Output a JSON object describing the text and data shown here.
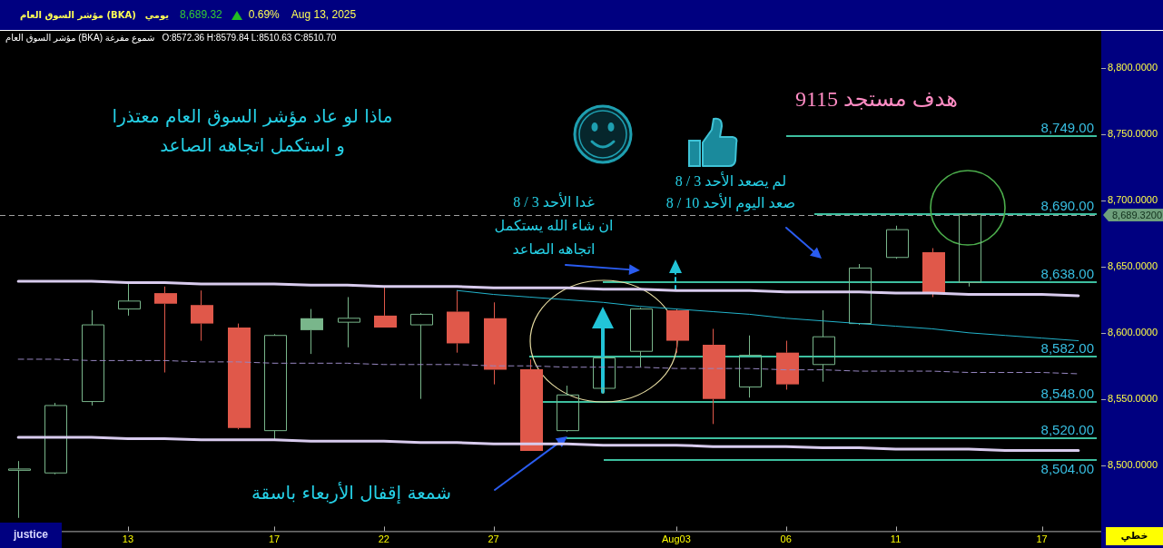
{
  "chart_data": {
    "type": "candlestick",
    "title": "مؤشر السوق العام (BKA)",
    "categories": [
      null,
      null,
      null,
      "13",
      null,
      null,
      null,
      "17",
      null,
      null,
      "22",
      null,
      null,
      "27",
      null,
      null,
      null,
      null,
      "Aug03",
      null,
      null,
      "06",
      null,
      null,
      "11",
      null,
      null,
      null,
      "17",
      null
    ],
    "ohlc": [
      [
        8496,
        8503,
        8460,
        8497
      ],
      [
        8494,
        8547,
        8493,
        8545
      ],
      [
        8548,
        8617,
        8545,
        8606
      ],
      [
        8618,
        8637,
        8613,
        8624
      ],
      [
        8630,
        8635,
        8570,
        8622
      ],
      [
        8621,
        8632,
        8594,
        8607
      ],
      [
        8604,
        8607,
        8527,
        8528
      ],
      [
        8526,
        8599,
        8519,
        8598
      ],
      [
        8611,
        8618,
        8584,
        8602
      ],
      [
        8608,
        8627,
        8589,
        8611
      ],
      [
        8613,
        8635,
        8604,
        8604
      ],
      [
        8606,
        8615,
        8550,
        8614
      ],
      [
        8616,
        8632,
        8585,
        8592
      ],
      [
        8611,
        8623,
        8561,
        8572
      ],
      [
        8572.36,
        8579.84,
        8510.63,
        8510.7
      ],
      [
        8526,
        8560,
        8525,
        8553
      ],
      [
        8558,
        8581,
        8554,
        8581
      ],
      [
        8586,
        8619,
        8574,
        8618
      ],
      [
        8617,
        8618,
        8585,
        8594
      ],
      [
        8591,
        8603,
        8531,
        8550
      ],
      [
        8559,
        8598,
        8551,
        8583
      ],
      [
        8585,
        8594,
        8557,
        8561
      ],
      [
        8576,
        8617,
        8563,
        8597
      ],
      [
        8607,
        8652,
        8606,
        8649
      ],
      [
        8657,
        8681,
        8656,
        8678
      ],
      [
        8661,
        8664,
        8627,
        8630
      ],
      [
        8638,
        8689.32,
        8635,
        8689.32
      ],
      null,
      null,
      null
    ],
    "colors": [
      "#79b68b",
      "#79b68b",
      "#79b68b",
      "#79b68b",
      "#e0584a",
      "#e0584a",
      "#e0584a",
      "#79b68b",
      "#79b68b",
      "#79b68b",
      "#e0584a",
      "#79b68b",
      "#e0584a",
      "#e0584a",
      "#e0584a",
      "#79b68b",
      "#79b68b",
      "#79b68b",
      "#e0584a",
      "#e0584a",
      "#79b68b",
      "#e0584a",
      "#79b68b",
      "#79b68b",
      "#79b68b",
      "#e0584a",
      "#79b68b",
      null,
      null,
      null
    ],
    "series": [
      {
        "type": "line",
        "color": "#d8cbee",
        "values": [
          8639,
          8639,
          8639,
          8638,
          8638,
          8637,
          8637,
          8637,
          8636,
          8636,
          8635,
          8635,
          8635,
          8634,
          8634,
          8634,
          8633,
          8633,
          8632,
          8632,
          8632,
          8631,
          8631,
          8631,
          8630,
          8630,
          8629,
          8629,
          8629,
          8628
        ]
      },
      {
        "type": "line",
        "color": "#d8cbee",
        "values": [
          8521,
          8521,
          8521,
          8520,
          8520,
          8519,
          8519,
          8519,
          8518,
          8518,
          8518,
          8517,
          8517,
          8516,
          8516,
          8516,
          8515,
          8515,
          8515,
          8514,
          8514,
          8514,
          8513,
          8513,
          8512,
          8512,
          8512,
          8511,
          8511,
          8511
        ]
      },
      {
        "type": "line",
        "color": "#22b4cc",
        "values": [
          null,
          null,
          null,
          null,
          null,
          null,
          null,
          null,
          null,
          null,
          null,
          null,
          8632,
          8629,
          8627,
          8625,
          8623,
          8620,
          8618,
          8616,
          8614,
          8611,
          8609,
          8607,
          8605,
          8603,
          8600,
          8598,
          8596,
          8594
        ]
      },
      {
        "type": "line",
        "color": "#9686c0",
        "line_style": "dashed",
        "values": [
          8580,
          8580,
          8579,
          8579,
          8579,
          8578,
          8578,
          8577,
          8577,
          8577,
          8576,
          8576,
          8576,
          8575,
          8575,
          8574,
          8574,
          8574,
          8573,
          8573,
          8573,
          8572,
          8572,
          8571,
          8571,
          8571,
          8570,
          8570,
          8570,
          8569
        ]
      }
    ],
    "ylim": [
      8450,
      8827
    ],
    "yticks": [
      {
        "value": 8500,
        "label": "8,500.0000"
      },
      {
        "value": 8550,
        "label": "8,550.0000"
      },
      {
        "value": 8600,
        "label": "8,600.0000"
      },
      {
        "value": 8650,
        "label": "8,650.0000"
      },
      {
        "value": 8700,
        "label": "8,700.0000"
      },
      {
        "value": 8750,
        "label": "8,750.0000"
      },
      {
        "value": 8800,
        "label": "8,800.0000"
      }
    ],
    "ref_lines": [
      {
        "axis": "y",
        "value": 8749,
        "label": "8,749.00",
        "color": "#3dbf9f"
      },
      {
        "axis": "y",
        "value": 8690,
        "label": "8,690.00",
        "color": "#3dbf9f"
      },
      {
        "axis": "y",
        "value": 8638,
        "label": "8,638.00",
        "color": "#3dbf9f"
      },
      {
        "axis": "y",
        "value": 8582,
        "label": "8,582.00",
        "color": "#3dbf9f"
      },
      {
        "axis": "y",
        "value": 8548,
        "label": "8,548.00",
        "color": "#3dbf9f"
      },
      {
        "axis": "y",
        "value": 8520,
        "label": "8,520.00",
        "color": "#3dbf9f"
      },
      {
        "axis": "y",
        "value": 8504,
        "label": "8,504.00",
        "color": "#3dbf9f"
      },
      {
        "axis": "y",
        "value": 8689.32,
        "label": "8,689.3200",
        "color": "#a0a0a0",
        "line_style": "dashed"
      }
    ],
    "annotations": [
      "يومي",
      "8,689.32",
      "0.69%",
      "Aug 13, 2025",
      "مؤشر السوق العام (BKA) شموع مفرغة",
      "O:8572.36 H:8579.84 L:8510.63 C:8510.70",
      "ماذا لو عاد مؤشر السوق العام معتذرا\nو استكمل اتجاهه الصاعد",
      "هدف مستجد 9115",
      "غدا الأحد 3 / 8\nان شاء الله يستكمل\nاتجاهه الصاعد",
      "لم يصعد الأحد 3 / 8\nصعد اليوم الأحد 10 / 8",
      "شمعة إقفال الأربعاء باسقة",
      "justice",
      "خطي"
    ]
  }
}
